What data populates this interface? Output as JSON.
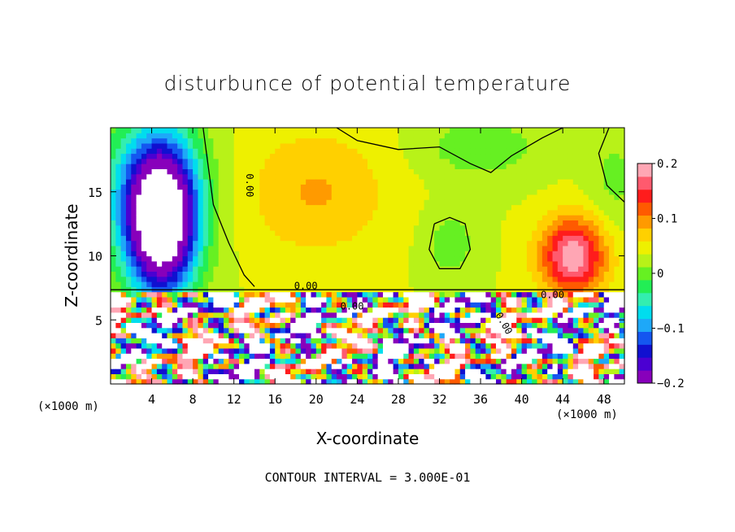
{
  "chart_data": {
    "type": "heatmap",
    "title": "disturbunce of potential temperature",
    "xlabel": "X-coordinate",
    "ylabel": "Z-coordinate",
    "x_unit_left": "(×1000 m)",
    "x_unit_right": "(×1000 m)",
    "footer": "CONTOUR INTERVAL = 3.000E-01",
    "xlim": [
      0,
      50
    ],
    "ylim": [
      0,
      20
    ],
    "x_ticks": [
      4,
      8,
      12,
      16,
      20,
      24,
      28,
      32,
      36,
      40,
      44,
      48
    ],
    "y_ticks": [
      5,
      10,
      15
    ],
    "contour_labels": [
      "0.00",
      "0.00",
      "0.00",
      "0.00",
      "0.00"
    ],
    "colorbar": {
      "ticks": [
        "0.2",
        "0.1",
        "0",
        "−0.1",
        "−0.2"
      ],
      "tick_values": [
        0.2,
        0.1,
        0,
        -0.1,
        -0.2
      ],
      "range": [
        -0.2,
        0.2
      ],
      "colors": [
        "#8800bb",
        "#4b00d2",
        "#1010d0",
        "#1456f0",
        "#1ea8f8",
        "#00ddee",
        "#33eeb0",
        "#22ee55",
        "#66f022",
        "#b8f218",
        "#eef000",
        "#ffd000",
        "#ff9a00",
        "#ff5a00",
        "#ff1c1c",
        "#ff5a6e",
        "#ffa6b4"
      ]
    }
  }
}
